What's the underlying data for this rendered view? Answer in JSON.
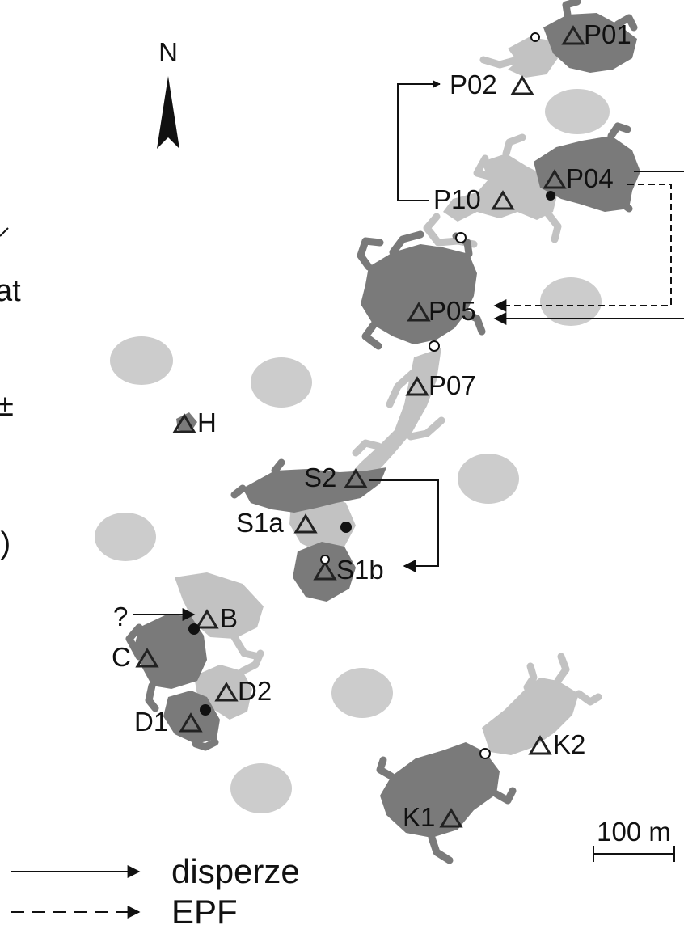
{
  "compass": {
    "north_label": "N"
  },
  "left_edge_text": {
    "line1": "at",
    "line2": "±",
    "line3": "i)"
  },
  "sites": {
    "P01": "P01",
    "P02": "P02",
    "P04": "P04",
    "P10": "P10",
    "P05": "P05",
    "P07": "P07",
    "H": "H",
    "S2": "S2",
    "S1a": "S1a",
    "S1b": "S1b",
    "B": "B",
    "C": "C",
    "D1": "D1",
    "D2": "D2",
    "K1": "K1",
    "K2": "K2"
  },
  "unknown_source_label": "?",
  "scale_bar": {
    "label": "100 m"
  },
  "legend": {
    "dispersal_label": "disperze",
    "epf_label": "EPF"
  },
  "colors": {
    "dark_habitat": "#7a7a7a",
    "light_habitat": "#c2c2c2",
    "pond": "#cccccc",
    "ink": "#111111"
  }
}
